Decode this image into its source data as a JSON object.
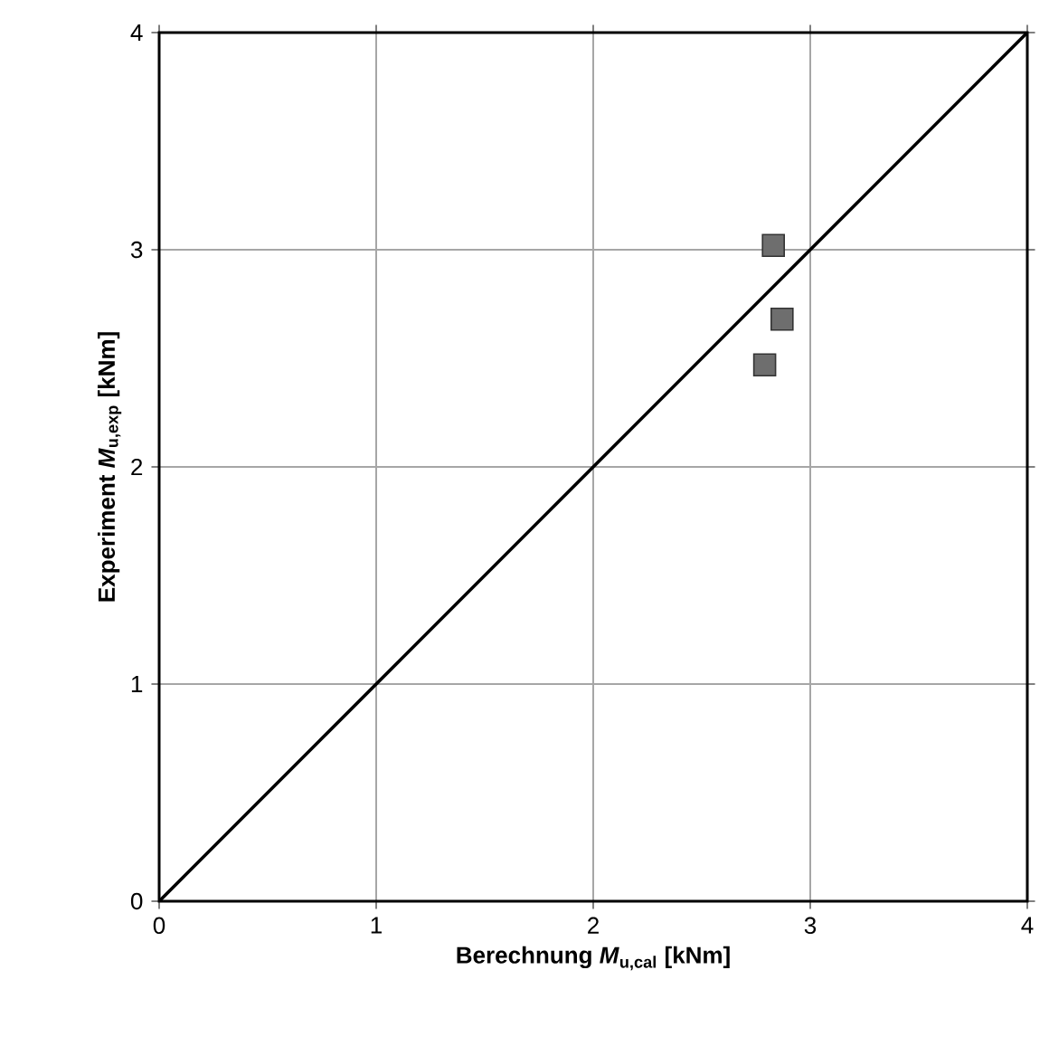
{
  "chart_data": {
    "type": "scatter",
    "xlabel": "Berechnung *M*$_{u,cal}$ [kNm]",
    "ylabel": "Experiment   *M*$_{u,exp}$ [kNm]",
    "series": [
      {
        "type": "line",
        "color": "#000000",
        "x": [
          0,
          4
        ],
        "values": [
          0,
          4
        ],
        "marker": "none"
      },
      {
        "color": "#6e6e6e",
        "x": [
          2.83,
          2.87,
          2.79
        ],
        "values": [
          3.02,
          2.68,
          2.47
        ],
        "marker": "square"
      }
    ],
    "xlim": [
      0,
      4
    ],
    "ylim": [
      0,
      4
    ],
    "xticks": [
      0,
      1,
      2,
      3,
      4
    ],
    "yticks": [
      0,
      1,
      2,
      3,
      4
    ],
    "grid": true
  }
}
